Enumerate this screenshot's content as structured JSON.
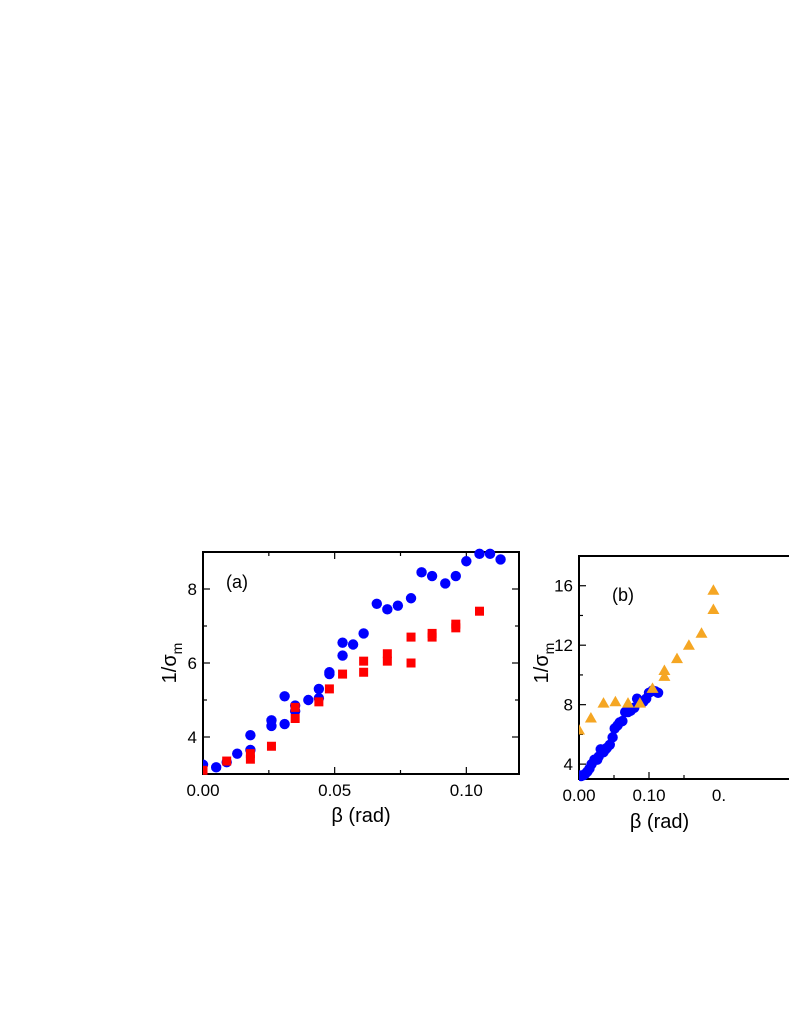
{
  "chart_data": [
    {
      "type": "scatter",
      "panel_label": "(a)",
      "xlabel": "β (rad)",
      "ylabel_main": "1/σ",
      "ylabel_sub": "m",
      "xlim": [
        0.0,
        0.12
      ],
      "ylim": [
        3.0,
        9.0
      ],
      "xticks": [
        0.0,
        0.05,
        0.1
      ],
      "xtick_labels": [
        "0.00",
        "0.05",
        "0.10"
      ],
      "yticks": [
        4,
        6,
        8
      ],
      "ytick_labels": [
        "4",
        "6",
        "8"
      ],
      "xminor": [
        0.025,
        0.075,
        0.125
      ],
      "yminor": [
        3,
        5,
        7,
        9
      ],
      "grid": false,
      "series": [
        {
          "marker": "circle",
          "color": "#0000ff",
          "points": [
            [
              0.0,
              3.25
            ],
            [
              0.005,
              3.18
            ],
            [
              0.009,
              3.32
            ],
            [
              0.013,
              3.55
            ],
            [
              0.018,
              3.65
            ],
            [
              0.018,
              4.05
            ],
            [
              0.026,
              4.3
            ],
            [
              0.026,
              4.45
            ],
            [
              0.031,
              4.35
            ],
            [
              0.031,
              5.1
            ],
            [
              0.035,
              4.7
            ],
            [
              0.035,
              4.85
            ],
            [
              0.04,
              5.0
            ],
            [
              0.044,
              5.05
            ],
            [
              0.044,
              5.3
            ],
            [
              0.048,
              5.7
            ],
            [
              0.048,
              5.75
            ],
            [
              0.053,
              6.2
            ],
            [
              0.053,
              6.55
            ],
            [
              0.057,
              6.5
            ],
            [
              0.061,
              6.8
            ],
            [
              0.066,
              7.6
            ],
            [
              0.07,
              7.45
            ],
            [
              0.074,
              7.55
            ],
            [
              0.079,
              7.75
            ],
            [
              0.083,
              8.45
            ],
            [
              0.087,
              8.35
            ],
            [
              0.092,
              8.15
            ],
            [
              0.096,
              8.35
            ],
            [
              0.1,
              8.75
            ],
            [
              0.105,
              8.95
            ],
            [
              0.109,
              8.95
            ],
            [
              0.113,
              8.8
            ]
          ]
        },
        {
          "marker": "square",
          "color": "#ff0000",
          "points": [
            [
              0.0,
              3.1
            ],
            [
              0.009,
              3.35
            ],
            [
              0.018,
              3.4
            ],
            [
              0.018,
              3.55
            ],
            [
              0.026,
              3.75
            ],
            [
              0.035,
              4.5
            ],
            [
              0.035,
              4.8
            ],
            [
              0.044,
              4.95
            ],
            [
              0.048,
              5.3
            ],
            [
              0.053,
              5.7
            ],
            [
              0.061,
              5.75
            ],
            [
              0.061,
              6.05
            ],
            [
              0.07,
              6.05
            ],
            [
              0.07,
              6.25
            ],
            [
              0.079,
              6.0
            ],
            [
              0.079,
              6.7
            ],
            [
              0.087,
              6.7
            ],
            [
              0.087,
              6.8
            ],
            [
              0.096,
              6.95
            ],
            [
              0.096,
              7.05
            ],
            [
              0.105,
              7.4
            ]
          ]
        }
      ]
    },
    {
      "type": "scatter",
      "panel_label": "(b)",
      "xlabel": "β (rad)",
      "ylabel_main": "1/σ",
      "ylabel_sub": "m",
      "xlim": [
        0.0,
        0.3
      ],
      "ylim": [
        3.0,
        18.0
      ],
      "xticks": [
        0.0,
        0.1
      ],
      "xtick_labels": [
        "0.00",
        "0.10"
      ],
      "xtick_partial": "0.",
      "yticks": [
        4,
        8,
        12,
        16
      ],
      "ytick_labels": [
        "4",
        "8",
        "12",
        "16"
      ],
      "xminor": [
        0.05,
        0.15
      ],
      "yminor": [
        6,
        10,
        14
      ],
      "grid": false,
      "series": [
        {
          "marker": "circle",
          "color": "#0000ff",
          "points": [
            [
              0.0,
              3.25
            ],
            [
              0.003,
              3.2
            ],
            [
              0.006,
              3.25
            ],
            [
              0.009,
              3.35
            ],
            [
              0.012,
              3.5
            ],
            [
              0.015,
              3.7
            ],
            [
              0.018,
              4.0
            ],
            [
              0.022,
              4.3
            ],
            [
              0.026,
              4.3
            ],
            [
              0.028,
              4.5
            ],
            [
              0.031,
              5.0
            ],
            [
              0.035,
              4.8
            ],
            [
              0.038,
              5.0
            ],
            [
              0.04,
              5.1
            ],
            [
              0.044,
              5.3
            ],
            [
              0.048,
              5.8
            ],
            [
              0.051,
              6.4
            ],
            [
              0.055,
              6.6
            ],
            [
              0.058,
              6.8
            ],
            [
              0.062,
              6.9
            ],
            [
              0.066,
              7.5
            ],
            [
              0.07,
              7.5
            ],
            [
              0.074,
              7.6
            ],
            [
              0.079,
              7.8
            ],
            [
              0.083,
              8.4
            ],
            [
              0.087,
              8.2
            ],
            [
              0.092,
              8.2
            ],
            [
              0.096,
              8.4
            ],
            [
              0.1,
              8.8
            ],
            [
              0.105,
              8.95
            ],
            [
              0.109,
              8.9
            ],
            [
              0.113,
              8.8
            ]
          ]
        },
        {
          "marker": "triangle",
          "color": "#f5a623",
          "points": [
            [
              0.0,
              6.3
            ],
            [
              0.017,
              7.1
            ],
            [
              0.035,
              8.1
            ],
            [
              0.052,
              8.2
            ],
            [
              0.07,
              8.1
            ],
            [
              0.087,
              8.1
            ],
            [
              0.105,
              9.1
            ],
            [
              0.122,
              9.9
            ],
            [
              0.122,
              10.3
            ],
            [
              0.14,
              11.1
            ],
            [
              0.157,
              12.0
            ],
            [
              0.175,
              12.8
            ],
            [
              0.192,
              14.4
            ],
            [
              0.192,
              15.7
            ]
          ]
        }
      ]
    }
  ]
}
